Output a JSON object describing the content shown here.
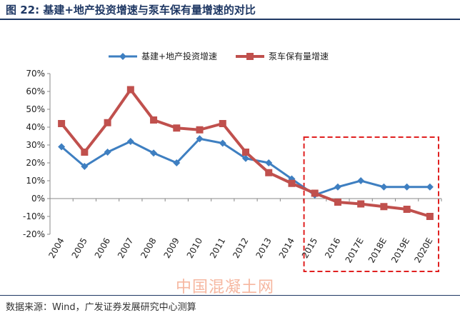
{
  "figure": {
    "title": "图 22: 基建+地产投资增速与泵车保有量增速的对比",
    "source": "数据来源：Wind，广发证券发展研究中心测算",
    "watermark": "中国混凝土网"
  },
  "chart_data": {
    "type": "line",
    "categories": [
      "2004",
      "2005",
      "2006",
      "2007",
      "2008",
      "2009",
      "2010",
      "2011",
      "2012",
      "2013",
      "2014",
      "2015",
      "2016",
      "2017E",
      "2018E",
      "2019E",
      "2020E"
    ],
    "series": [
      {
        "name": "基建+地产投资增速",
        "color": "#3e7fc1",
        "marker": "diamond",
        "values": [
          29,
          18,
          26,
          32,
          25.5,
          20,
          33.5,
          31,
          22.5,
          20,
          11,
          2,
          6.5,
          10,
          6.5,
          6.5,
          6.5
        ]
      },
      {
        "name": "泵车保有量增速",
        "color": "#c0504d",
        "marker": "square",
        "values": [
          42,
          26,
          42.5,
          61,
          44,
          39.5,
          38.5,
          42,
          26,
          14.5,
          8.5,
          3,
          -2,
          -3,
          -4.5,
          -6,
          -10
        ]
      }
    ],
    "yticks": [
      "70%",
      "60%",
      "50%",
      "40%",
      "30%",
      "20%",
      "10%",
      "0%",
      "-10%",
      "-20%"
    ],
    "ylim": [
      -20,
      70
    ],
    "grid": false,
    "legend": "top-center",
    "annotations": [
      {
        "type": "dashed-box",
        "color": "#e02020",
        "from_category": "2015",
        "to_category": "2020E"
      }
    ]
  }
}
